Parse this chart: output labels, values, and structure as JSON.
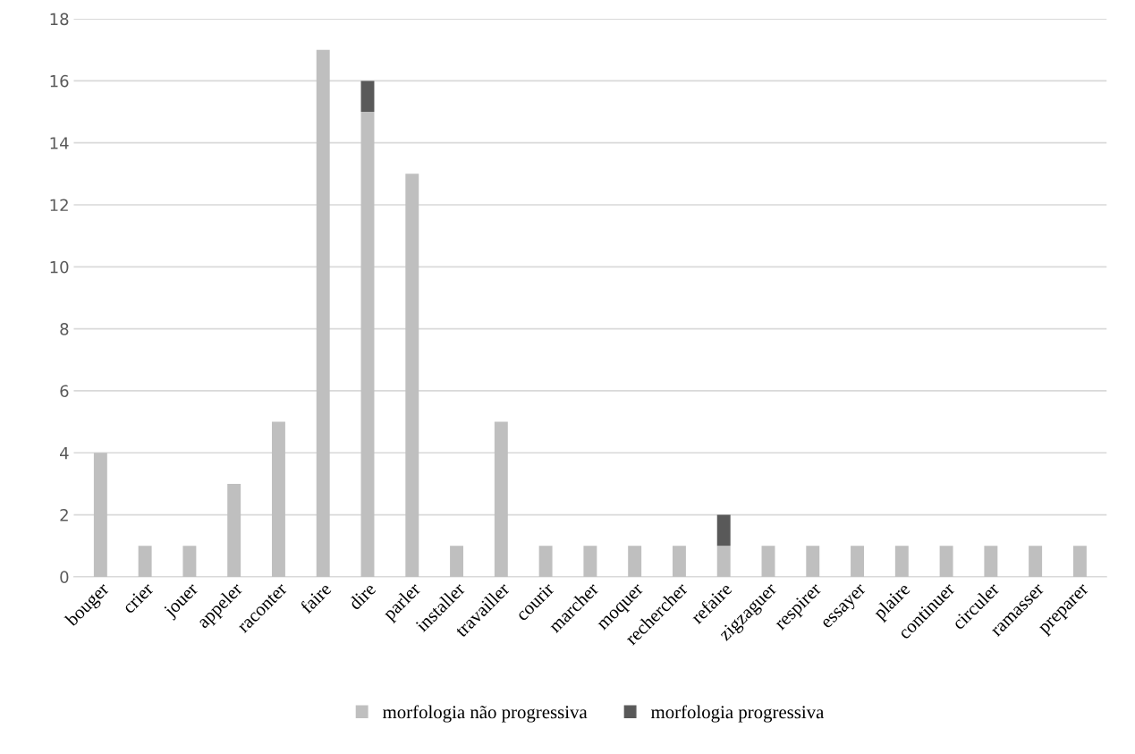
{
  "chart_data": {
    "type": "bar",
    "stacked": true,
    "categories": [
      "bouger",
      "crier",
      "jouer",
      "appeler",
      "raconter",
      "faire",
      "dire",
      "parler",
      "installer",
      "travailler",
      "courir",
      "marcher",
      "moquer",
      "rechercher",
      "refaire",
      "zigzaguer",
      "respirer",
      "essayer",
      "plaire",
      "continuer",
      "circuler",
      "ramasser",
      "preparer"
    ],
    "series": [
      {
        "name": "morfologia não progressiva",
        "color": "#bfbfbf",
        "values": [
          4,
          1,
          1,
          3,
          5,
          17,
          15,
          13,
          1,
          5,
          1,
          1,
          1,
          1,
          1,
          1,
          1,
          1,
          1,
          1,
          1,
          1,
          1
        ]
      },
      {
        "name": "morfologia progressiva",
        "color": "#595959",
        "values": [
          0,
          0,
          0,
          0,
          0,
          0,
          1,
          0,
          0,
          0,
          0,
          0,
          0,
          0,
          1,
          0,
          0,
          0,
          0,
          0,
          0,
          0,
          0
        ]
      }
    ],
    "ylim": [
      0,
      18
    ],
    "yticks": [
      0,
      2,
      4,
      6,
      8,
      10,
      12,
      14,
      16,
      18
    ],
    "grid": "y",
    "legend": "bottom"
  }
}
